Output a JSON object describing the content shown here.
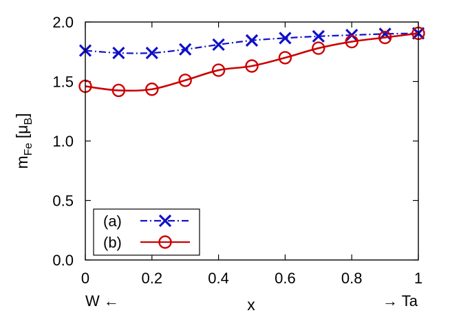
{
  "chart_data": {
    "type": "line",
    "title": "",
    "xlabel": "x",
    "ylabel": {
      "base": "m",
      "sub": "Fe",
      "open": " [μ",
      "unit_sub": "B",
      "close": "]"
    },
    "x_left_label": "W ←",
    "x_right_label": "→ Ta",
    "xlim": [
      0,
      1
    ],
    "ylim": [
      0,
      2
    ],
    "x_ticks": [
      "0",
      "0.2",
      "0.4",
      "0.6",
      "0.8",
      "1"
    ],
    "x_tick_values": [
      0,
      0.2,
      0.4,
      0.6,
      0.8,
      1
    ],
    "y_ticks": [
      "0.0",
      "0.5",
      "1.0",
      "1.5",
      "2.0"
    ],
    "y_tick_values": [
      0,
      0.5,
      1.0,
      1.5,
      2.0
    ],
    "x": [
      0,
      0.1,
      0.2,
      0.3,
      0.4,
      0.5,
      0.6,
      0.7,
      0.8,
      0.9,
      1.0
    ],
    "legend_position": "bottom-left",
    "grid": false,
    "series": [
      {
        "name": "(a)",
        "color": "#1010c8",
        "marker": "x",
        "line_style": "dash-dot",
        "values": [
          1.76,
          1.74,
          1.74,
          1.77,
          1.81,
          1.845,
          1.865,
          1.88,
          1.89,
          1.9,
          1.905
        ]
      },
      {
        "name": "(b)",
        "color": "#cc0000",
        "marker": "circle",
        "line_style": "solid",
        "values": [
          1.46,
          1.425,
          1.435,
          1.51,
          1.595,
          1.63,
          1.7,
          1.78,
          1.835,
          1.87,
          1.905
        ]
      }
    ]
  }
}
